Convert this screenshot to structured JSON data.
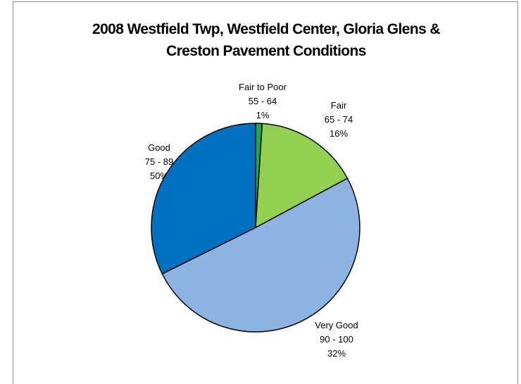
{
  "chart_data": {
    "type": "pie",
    "title": "2008 Westfield Twp, Westfield Center, Gloria Glens & Creston Pavement Conditions",
    "categories": [
      "Fair to Poor",
      "Fair",
      "Good",
      "Very Good"
    ],
    "ranges": [
      "55 - 64",
      "65 - 74",
      "75 - 89",
      "90 - 100"
    ],
    "values": [
      1,
      16,
      50,
      32
    ],
    "value_labels": [
      "1%",
      "16%",
      "50%",
      "32%"
    ],
    "colors": [
      "#1fa84f",
      "#92d050",
      "#8db3e2",
      "#0070c0"
    ]
  }
}
